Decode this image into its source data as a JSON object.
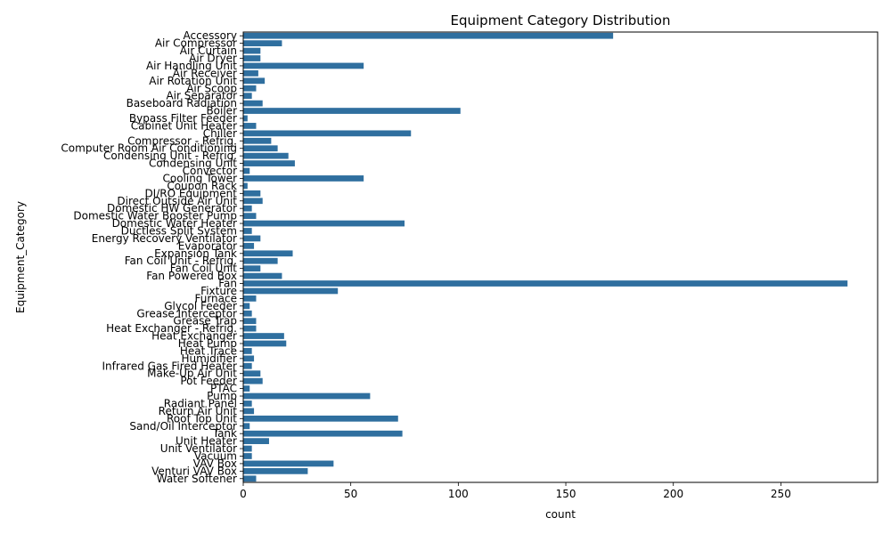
{
  "chart_data": {
    "type": "bar",
    "orientation": "horizontal",
    "title": "Equipment Category Distribution",
    "xlabel": "count",
    "ylabel": "Equipment_Category",
    "xlim": [
      0,
      295
    ],
    "xticks": [
      0,
      50,
      100,
      150,
      200,
      250
    ],
    "grid": false,
    "legend": "none",
    "bar_color": "#2f6f9f",
    "categories": [
      "Accessory",
      "Air Compressor",
      "Air Curtain",
      "Air Dryer",
      "Air Handling Unit",
      "Air Receiver",
      "Air Rotation Unit",
      "Air Scoop",
      "Air Separator",
      "Baseboard Radiation",
      "Boiler",
      "Bypass Filter Feeder",
      "Cabinet Unit Heater",
      "Chiller",
      "Compressor - Refrig.",
      "Computer Room Air Conditioning",
      "Condensing Unit - Refrig.",
      "Condensing Unit",
      "Convector",
      "Cooling Tower",
      "Coupon Rack",
      "DI/RO Equipment",
      "Direct Outside Air Unit",
      "Domestic HW Generator",
      "Domestic Water Booster Pump",
      "Domestic Water Heater",
      "Ductless Split System",
      "Energy Recovery Ventilator",
      "Evaporator",
      "Expansion Tank",
      "Fan Coil Unit - Refrig.",
      "Fan Coil Unit",
      "Fan Powered Box",
      "Fan",
      "Fixture",
      "Furnace",
      "Glycol Feeder",
      "Grease Interceptor",
      "Grease Trap",
      "Heat Exchanger - Refrig.",
      "Heat Exchanger",
      "Heat Pump",
      "Heat Trace",
      "Humidifier",
      "Infrared Gas Fired Heater",
      "Make-Up Air Unit",
      "Pot Feeder",
      "PTAC",
      "Pump",
      "Radiant Panel",
      "Return Air Unit",
      "Roof Top Unit",
      "Sand/Oil Interceptor",
      "Tank",
      "Unit Heater",
      "Unit Ventilator",
      "Vacuum",
      "VAV Box",
      "Venturi VAV Box",
      "Water Softener"
    ],
    "values": [
      172,
      18,
      8,
      8,
      56,
      7,
      10,
      6,
      4,
      9,
      101,
      2,
      6,
      78,
      13,
      16,
      21,
      24,
      3,
      56,
      2,
      8,
      9,
      4,
      6,
      75,
      4,
      8,
      5,
      23,
      16,
      8,
      18,
      281,
      44,
      6,
      3,
      4,
      6,
      6,
      19,
      20,
      4,
      5,
      4,
      8,
      9,
      3,
      59,
      4,
      5,
      72,
      3,
      74,
      12,
      4,
      4,
      42,
      30,
      6
    ]
  }
}
